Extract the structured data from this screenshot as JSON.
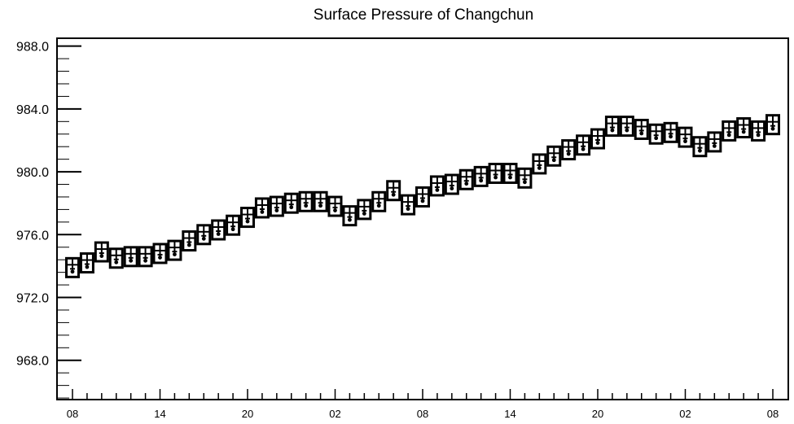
{
  "chart_data": {
    "type": "boxplot-series",
    "title": "Surface Pressure of Changchun",
    "xlabel": "",
    "ylabel": "",
    "x_start_hour": 8,
    "x_step_hours": 1,
    "x_tick_labels": [
      "08",
      "14",
      "20",
      "02",
      "08",
      "14",
      "20",
      "02",
      "08"
    ],
    "x_tick_every": 6,
    "ylim": [
      965.5,
      988.5
    ],
    "y_ticks": [
      968.0,
      972.0,
      976.0,
      980.0,
      984.0,
      988.0
    ],
    "y_tick_labels": [
      "968.0",
      "972.0",
      "976.0",
      "980.0",
      "984.0",
      "988.0"
    ],
    "y_minor_step": 0.8,
    "grid": false,
    "legend": "none",
    "values": [
      973.9,
      974.2,
      974.9,
      974.5,
      974.6,
      974.6,
      974.8,
      975.0,
      975.6,
      976.0,
      976.3,
      976.6,
      977.1,
      977.7,
      977.8,
      978.0,
      978.1,
      978.1,
      977.8,
      977.2,
      977.6,
      978.1,
      978.8,
      977.9,
      978.4,
      979.1,
      979.2,
      979.5,
      979.7,
      979.9,
      979.9,
      979.6,
      980.5,
      981.0,
      981.4,
      981.7,
      982.1,
      982.9,
      982.9,
      982.7,
      982.4,
      982.5,
      982.2,
      981.6,
      981.9,
      982.6,
      982.8,
      982.6,
      983.0
    ]
  }
}
